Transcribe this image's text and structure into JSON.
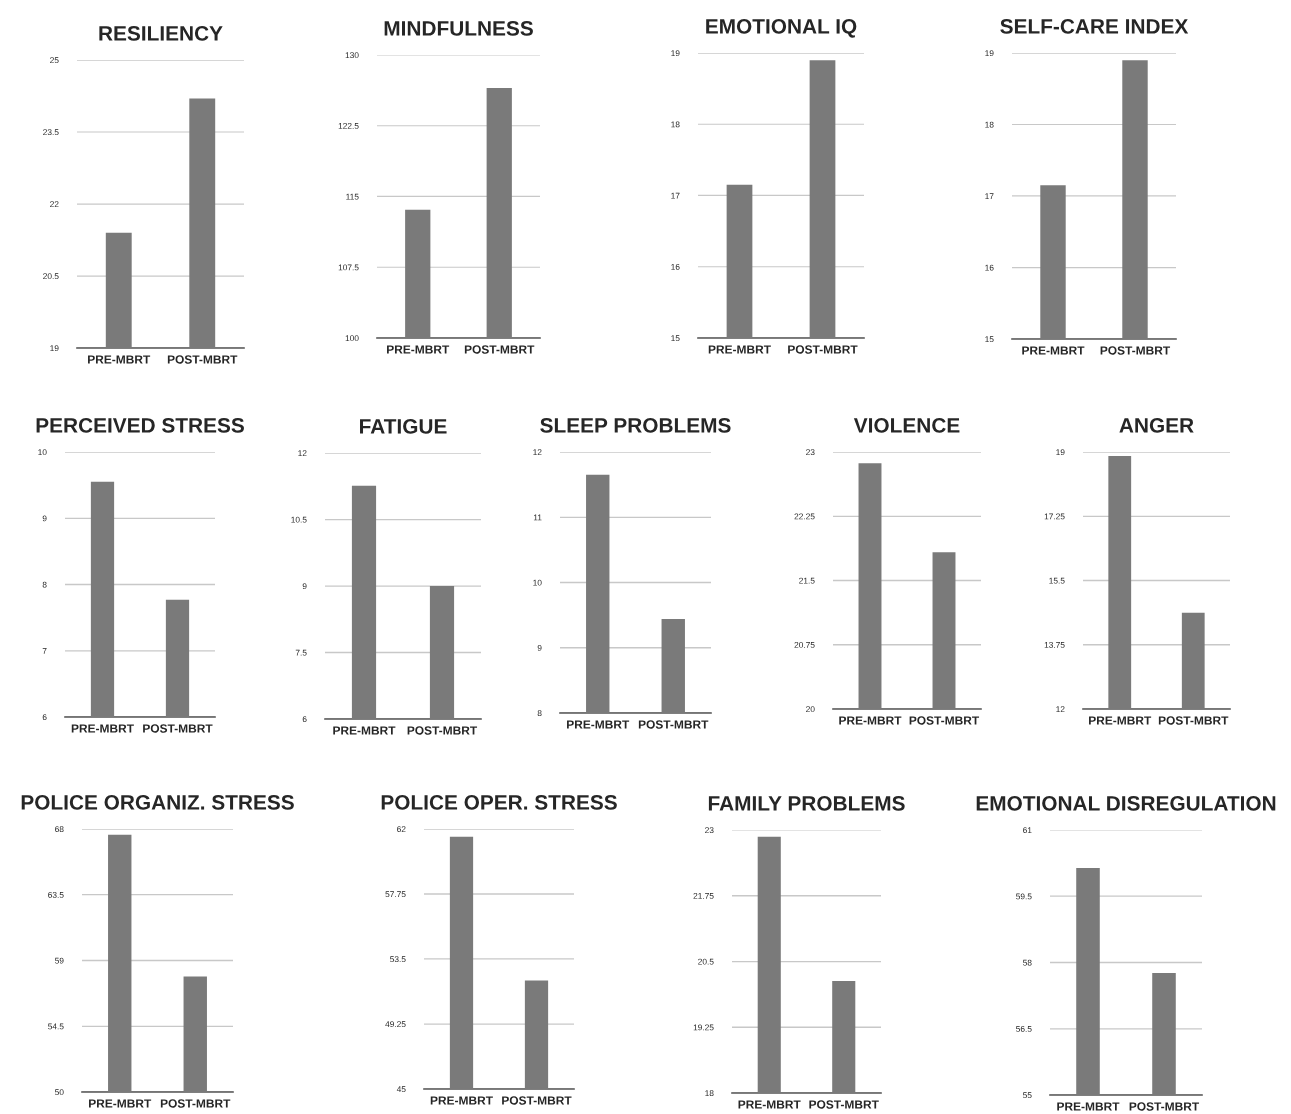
{
  "chart_data": [
    {
      "type": "bar",
      "title": "RESILIENCY",
      "categories": [
        "PRE-MBRT",
        "POST-MBRT"
      ],
      "values": [
        21.4,
        24.2
      ],
      "color": "#7a7a7a",
      "ylim": [
        19,
        25
      ],
      "yticks": [
        19,
        20.5,
        22,
        23.5,
        25
      ],
      "grid": "y"
    },
    {
      "type": "bar",
      "title": "MINDFULNESS",
      "categories": [
        "PRE-MBRT",
        "POST-MBRT"
      ],
      "values": [
        113.6,
        126.5
      ],
      "color": "#7a7a7a",
      "ylim": [
        100,
        130
      ],
      "yticks": [
        100,
        107.5,
        115,
        122.5,
        130
      ],
      "grid": "y"
    },
    {
      "type": "bar",
      "title": "EMOTIONAL IQ",
      "categories": [
        "PRE-MBRT",
        "POST-MBRT"
      ],
      "values": [
        17.15,
        18.9
      ],
      "color": "#7a7a7a",
      "ylim": [
        15,
        19
      ],
      "yticks": [
        15,
        16,
        17,
        18,
        19
      ],
      "grid": "y"
    },
    {
      "type": "bar",
      "title": "SELF-CARE INDEX",
      "categories": [
        "PRE-MBRT",
        "POST-MBRT"
      ],
      "values": [
        17.15,
        18.9
      ],
      "color": "#7a7a7a",
      "ylim": [
        15,
        19
      ],
      "yticks": [
        15,
        16,
        17,
        18,
        19
      ],
      "grid": "y"
    },
    {
      "type": "bar",
      "title": "PERCEIVED STRESS",
      "categories": [
        "PRE-MBRT",
        "POST-MBRT"
      ],
      "values": [
        9.55,
        7.77
      ],
      "color": "#7a7a7a",
      "ylim": [
        6,
        10
      ],
      "yticks": [
        6,
        7,
        8,
        9,
        10
      ],
      "grid": "y"
    },
    {
      "type": "bar",
      "title": "FATIGUE",
      "categories": [
        "PRE-MBRT",
        "POST-MBRT"
      ],
      "values": [
        11.26,
        9.0
      ],
      "color": "#7a7a7a",
      "ylim": [
        6,
        12
      ],
      "yticks": [
        6,
        7.5,
        9,
        10.5,
        12
      ],
      "grid": "y"
    },
    {
      "type": "bar",
      "title": "SLEEP PROBLEMS",
      "categories": [
        "PRE-MBRT",
        "POST-MBRT"
      ],
      "values": [
        11.65,
        9.44
      ],
      "color": "#7a7a7a",
      "ylim": [
        8,
        12
      ],
      "yticks": [
        8,
        9,
        10,
        11,
        12
      ],
      "grid": "y"
    },
    {
      "type": "bar",
      "title": "VIOLENCE",
      "categories": [
        "PRE-MBRT",
        "POST-MBRT"
      ],
      "values": [
        22.87,
        21.83
      ],
      "color": "#7a7a7a",
      "ylim": [
        20,
        23
      ],
      "yticks": [
        20,
        20.75,
        21.5,
        22.25,
        23
      ],
      "grid": "y"
    },
    {
      "type": "bar",
      "title": "ANGER",
      "categories": [
        "PRE-MBRT",
        "POST-MBRT"
      ],
      "values": [
        18.89,
        14.62
      ],
      "color": "#7a7a7a",
      "ylim": [
        12,
        19
      ],
      "yticks": [
        12,
        13.75,
        15.5,
        17.25,
        19
      ],
      "grid": "y"
    },
    {
      "type": "bar",
      "title": "POLICE ORGANIZ. STRESS",
      "categories": [
        "PRE-MBRT",
        "POST-MBRT"
      ],
      "values": [
        67.6,
        57.9
      ],
      "color": "#7a7a7a",
      "ylim": [
        50,
        68
      ],
      "yticks": [
        50,
        54.5,
        59,
        63.5,
        68
      ],
      "grid": "y"
    },
    {
      "type": "bar",
      "title": "POLICE OPER. STRESS",
      "categories": [
        "PRE-MBRT",
        "POST-MBRT"
      ],
      "values": [
        61.5,
        52.1
      ],
      "color": "#7a7a7a",
      "ylim": [
        45,
        62
      ],
      "yticks": [
        45,
        49.25,
        53.5,
        57.75,
        62
      ],
      "grid": "y"
    },
    {
      "type": "bar",
      "title": "FAMILY PROBLEMS",
      "categories": [
        "PRE-MBRT",
        "POST-MBRT"
      ],
      "values": [
        22.87,
        20.13
      ],
      "color": "#7a7a7a",
      "ylim": [
        18,
        23
      ],
      "yticks": [
        18,
        19.25,
        20.5,
        21.75,
        23
      ],
      "grid": "y"
    },
    {
      "type": "bar",
      "title": "EMOTIONAL DISREGULATION",
      "categories": [
        "PRE-MBRT",
        "POST-MBRT"
      ],
      "values": [
        60.14,
        57.76
      ],
      "color": "#7a7a7a",
      "ylim": [
        55,
        61
      ],
      "yticks": [
        55,
        56.5,
        58,
        59.5,
        61
      ],
      "grid": "y"
    }
  ]
}
